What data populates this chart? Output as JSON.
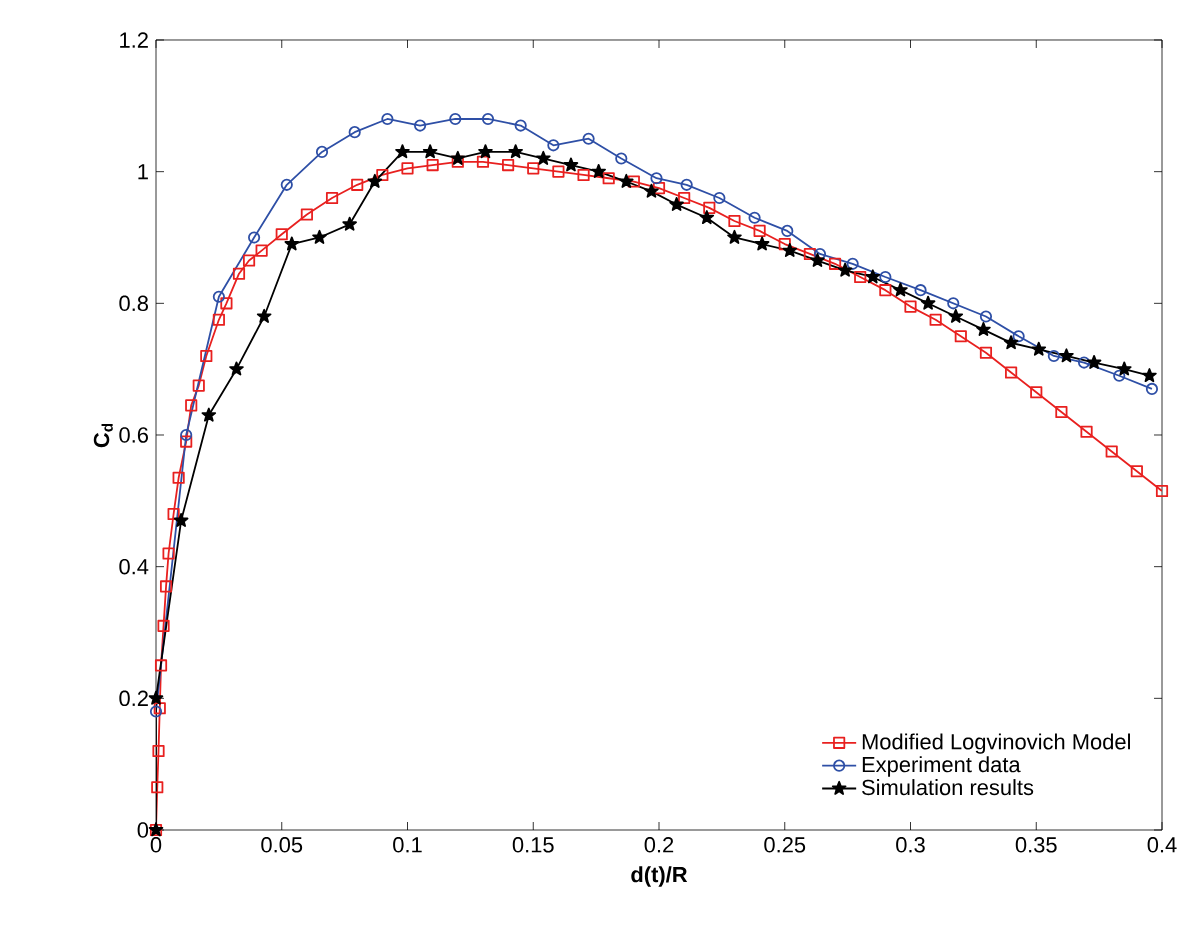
{
  "chart_data": {
    "type": "line",
    "xlabel": "d(t)/R",
    "ylabel": "C$_{d}$",
    "xlim": [
      0,
      0.4
    ],
    "ylim": [
      0,
      1.2
    ],
    "xticks": [
      0,
      0.05,
      0.1,
      0.15,
      0.2,
      0.25,
      0.3,
      0.35,
      0.4
    ],
    "yticks": [
      0,
      0.2,
      0.4,
      0.6,
      0.8,
      1,
      1.2
    ],
    "legend": "bottom right",
    "grid": false,
    "line_style": "solid",
    "series": [
      {
        "name": "Modified Logvinovich Model",
        "color": "#e8201f",
        "marker": "square",
        "x": [
          0,
          0.0005,
          0.001,
          0.0015,
          0.002,
          0.003,
          0.004,
          0.005,
          0.007,
          0.009,
          0.012,
          0.014,
          0.017,
          0.02,
          0.025,
          0.028,
          0.033,
          0.037,
          0.042,
          0.05,
          0.06,
          0.07,
          0.08,
          0.09,
          0.1,
          0.11,
          0.12,
          0.13,
          0.14,
          0.15,
          0.16,
          0.17,
          0.18,
          0.19,
          0.2,
          0.21,
          0.22,
          0.23,
          0.24,
          0.25,
          0.26,
          0.27,
          0.28,
          0.29,
          0.3,
          0.31,
          0.32,
          0.33,
          0.34,
          0.35,
          0.36,
          0.37,
          0.38,
          0.39,
          0.4
        ],
        "values": [
          0,
          0.065,
          0.12,
          0.185,
          0.25,
          0.31,
          0.37,
          0.42,
          0.48,
          0.535,
          0.59,
          0.645,
          0.675,
          0.72,
          0.775,
          0.8,
          0.845,
          0.865,
          0.88,
          0.905,
          0.935,
          0.96,
          0.98,
          0.995,
          1.005,
          1.01,
          1.015,
          1.015,
          1.01,
          1.005,
          1.0,
          0.995,
          0.99,
          0.985,
          0.975,
          0.96,
          0.945,
          0.925,
          0.91,
          0.89,
          0.875,
          0.86,
          0.84,
          0.82,
          0.795,
          0.775,
          0.75,
          0.725,
          0.695,
          0.665,
          0.635,
          0.605,
          0.575,
          0.545,
          0.515
        ]
      },
      {
        "name": "Experiment data",
        "color": "#2e4fa6",
        "marker": "circle",
        "x": [
          0,
          0.012,
          0.025,
          0.039,
          0.052,
          0.066,
          0.079,
          0.092,
          0.105,
          0.119,
          0.132,
          0.145,
          0.158,
          0.172,
          0.185,
          0.199,
          0.211,
          0.224,
          0.238,
          0.251,
          0.264,
          0.277,
          0.29,
          0.304,
          0.317,
          0.33,
          0.343,
          0.357,
          0.369,
          0.383,
          0.396
        ],
        "values": [
          0.18,
          0.6,
          0.81,
          0.9,
          0.98,
          1.03,
          1.06,
          1.08,
          1.07,
          1.08,
          1.08,
          1.07,
          1.04,
          1.05,
          1.02,
          0.99,
          0.98,
          0.96,
          0.93,
          0.91,
          0.875,
          0.86,
          0.84,
          0.82,
          0.8,
          0.78,
          0.75,
          0.72,
          0.71,
          0.69,
          0.67
        ]
      },
      {
        "name": "Simulation results",
        "color": "#000000",
        "marker": "star",
        "x": [
          0,
          0,
          0.01,
          0.021,
          0.032,
          0.043,
          0.054,
          0.065,
          0.077,
          0.087,
          0.098,
          0.109,
          0.12,
          0.131,
          0.143,
          0.154,
          0.165,
          0.176,
          0.187,
          0.197,
          0.207,
          0.219,
          0.23,
          0.241,
          0.252,
          0.263,
          0.274,
          0.285,
          0.296,
          0.307,
          0.318,
          0.329,
          0.34,
          0.351,
          0.362,
          0.373,
          0.385,
          0.395
        ],
        "values": [
          0,
          0.2,
          0.47,
          0.63,
          0.7,
          0.78,
          0.89,
          0.9,
          0.92,
          0.985,
          1.03,
          1.03,
          1.02,
          1.03,
          1.03,
          1.02,
          1.01,
          1.0,
          0.985,
          0.97,
          0.95,
          0.93,
          0.9,
          0.89,
          0.88,
          0.865,
          0.85,
          0.84,
          0.82,
          0.8,
          0.78,
          0.76,
          0.74,
          0.73,
          0.72,
          0.71,
          0.7,
          0.69
        ]
      }
    ]
  }
}
